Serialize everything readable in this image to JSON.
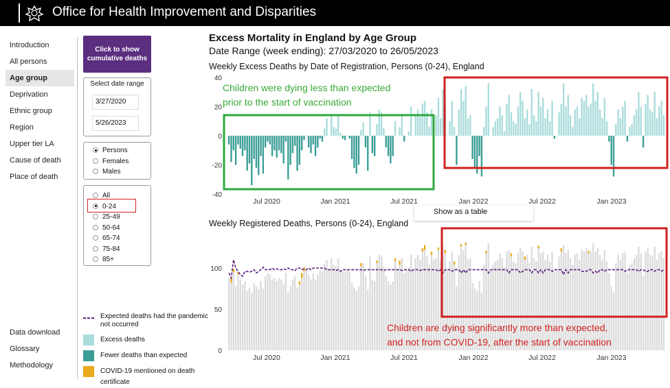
{
  "header": {
    "title": "Office for Health Improvement and Disparities"
  },
  "nav": {
    "items": [
      "Introduction",
      "All persons",
      "Age group",
      "Deprivation",
      "Ethnic group",
      "Region",
      "Upper tier LA",
      "Cause of death",
      "Place of death"
    ],
    "active_index": 2,
    "bottom_items": [
      "Data download",
      "Glossary",
      "Methodology"
    ]
  },
  "controls": {
    "cumulative_button": "Click to show cumulative deaths",
    "date_range_title": "Select date range",
    "date_start": "3/27/2020",
    "date_end": "5/26/2023",
    "sex_options": [
      "Persons",
      "Females",
      "Males"
    ],
    "sex_selected": 0,
    "age_options": [
      "All",
      "0-24",
      "25-49",
      "50-64",
      "65-74",
      "75-84",
      "85+"
    ],
    "age_selected": 1
  },
  "legend": {
    "expected_line": "Expected deaths had the pandemic not occurred",
    "excess": "Excess deaths",
    "fewer": "Fewer deaths than expected",
    "covid": "COVID-19 mentioned on death certificate"
  },
  "page": {
    "title": "Excess Mortality in England by Age Group",
    "subtitle": "Date Range (week ending): 27/03/2020 to 26/05/2023"
  },
  "tooltip": "Show as a table",
  "annotations": {
    "green": [
      "Children were dying less than expected",
      "prior to the start of vaccination"
    ],
    "red": [
      "Children are dying significantly more than expected,",
      "and not from COVID-19, after the start of vaccination"
    ]
  },
  "colors": {
    "excess": "#aadcdb",
    "fewer": "#3a9e96",
    "covid": "#e8a91c",
    "expected": "#5a1f7a",
    "registered": "#dcdcdc",
    "header_bg": "#000000",
    "button_bg": "#5b2e7f",
    "green_box": "#2ea83e",
    "red_box": "#d02020"
  },
  "chart_data": [
    {
      "type": "bar",
      "title": "Weekly Excess Deaths by Date of Registration, Persons (0-24), England",
      "x_tick_labels": [
        "Jul 2020",
        "Jan 2021",
        "Jul 2021",
        "Jan 2022",
        "Jul 2022",
        "Jan 2023"
      ],
      "ylim": [
        -40,
        40
      ],
      "y_ticks": [
        40,
        20,
        0,
        -20,
        -40
      ],
      "values": [
        -6,
        -18,
        -10,
        -20,
        -6,
        -9,
        -14,
        -10,
        -24,
        -19,
        -34,
        -16,
        -22,
        -27,
        -14,
        -26,
        -8,
        -4,
        -6,
        -14,
        -10,
        -15,
        -10,
        -12,
        -19,
        -4,
        -30,
        -20,
        -12,
        -7,
        -24,
        -20,
        -10,
        -3,
        0,
        -8,
        -12,
        -6,
        -14,
        -8,
        -2,
        -4,
        5,
        12,
        0,
        14,
        6,
        5,
        14,
        2,
        -2,
        -3,
        0,
        -2,
        -16,
        -22,
        -26,
        -20,
        4,
        9,
        -8,
        -24,
        16,
        -12,
        -14,
        8,
        18,
        16,
        5,
        -8,
        -14,
        -19,
        -14,
        10,
        0,
        6,
        15,
        -4,
        0,
        3,
        20,
        0,
        14,
        18,
        13,
        22,
        24,
        16,
        6,
        18,
        12,
        14,
        26,
        12,
        32,
        20,
        0,
        10,
        24,
        6,
        -20,
        18,
        32,
        24,
        34,
        12,
        14,
        -16,
        -22,
        -26,
        -14,
        -28,
        6,
        20,
        36,
        0,
        6,
        10,
        12,
        20,
        14,
        3,
        22,
        28,
        16,
        10,
        8,
        20,
        30,
        24,
        12,
        18,
        8,
        32,
        14,
        10,
        30,
        20,
        26,
        12,
        18,
        10,
        24,
        -2,
        0,
        16,
        22,
        36,
        20,
        28,
        14,
        6,
        18,
        20,
        12,
        26,
        24,
        28,
        20,
        22,
        36,
        24,
        30,
        18,
        12,
        26,
        10,
        -4,
        -20,
        -28,
        8,
        18,
        12,
        20,
        24,
        -4,
        6,
        8,
        14,
        18,
        30,
        20,
        -8,
        22,
        28,
        18,
        16,
        30,
        12,
        20,
        24,
        14
      ]
    },
    {
      "type": "bar",
      "title": "Weekly Registered Deaths, Persons (0-24), England",
      "x_tick_labels": [
        "Jul 2020",
        "Jan 2021",
        "Jul 2021",
        "Jan 2022",
        "Jul 2022",
        "Jan 2023"
      ],
      "ylim": [
        0,
        125
      ],
      "y_ticks": [
        100,
        50,
        0
      ],
      "series": [
        {
          "name": "Registered deaths",
          "values": [
            88,
            82,
            95,
            78,
            92,
            86,
            80,
            84,
            72,
            76,
            70,
            82,
            78,
            74,
            84,
            75,
            90,
            94,
            92,
            86,
            88,
            84,
            88,
            86,
            80,
            94,
            70,
            78,
            86,
            90,
            76,
            80,
            88,
            96,
            98,
            92,
            86,
            94,
            86,
            92,
            98,
            96,
            105,
            110,
            98,
            112,
            104,
            102,
            112,
            98,
            96,
            95,
            98,
            96,
            82,
            76,
            72,
            78,
            102,
            106,
            90,
            74,
            114,
            86,
            84,
            106,
            116,
            114,
            102,
            90,
            84,
            80,
            84,
            108,
            98,
            104,
            112,
            94,
            98,
            101,
            116,
            98,
            112,
            116,
            110,
            120,
            122,
            114,
            104,
            116,
            110,
            112,
            122,
            110,
            126,
            118,
            98,
            108,
            120,
            104,
            78,
            116,
            126,
            122,
            128,
            110,
            112,
            82,
            76,
            72,
            84,
            70,
            104,
            118,
            130,
            98,
            104,
            108,
            110,
            118,
            112,
            101,
            120,
            122,
            114,
            108,
            106,
            118,
            124,
            120,
            110,
            116,
            106,
            126,
            112,
            108,
            124,
            118,
            120,
            110,
            116,
            108,
            120,
            96,
            98,
            114,
            120,
            128,
            118,
            122,
            112,
            104,
            116,
            118,
            110,
            122,
            120,
            124,
            118,
            120,
            130,
            120,
            124,
            116,
            110,
            122,
            108,
            94,
            78,
            70,
            106,
            116,
            110,
            118,
            120,
            94,
            104,
            106,
            112,
            116,
            126,
            118,
            90,
            120,
            124,
            116,
            114,
            126,
            110,
            118,
            120,
            112
          ]
        },
        {
          "name": "Expected deaths had the pandemic not occurred",
          "values": [
            94,
            88,
            110,
            100,
            96,
            92,
            90,
            96,
            96,
            95,
            96,
            98,
            94,
            96,
            98,
            101,
            98,
            98,
            98,
            100,
            98,
            99,
            98,
            98,
            99,
            98,
            100,
            98,
            98,
            97,
            100,
            100,
            98,
            99,
            98,
            100,
            98,
            100,
            100,
            100,
            100,
            100,
            100,
            98,
            98,
            98,
            98,
            97,
            98,
            96,
            98,
            98,
            98,
            98,
            98,
            98,
            98,
            98,
            98,
            97,
            98,
            98,
            98,
            98,
            98,
            98,
            98,
            98,
            97,
            98,
            98,
            98,
            98,
            98,
            98,
            98,
            97,
            98,
            98,
            98,
            96,
            98,
            98,
            98,
            97,
            98,
            98,
            98,
            98,
            98,
            98,
            98,
            96,
            98,
            94,
            98,
            98,
            98,
            96,
            98,
            98,
            98,
            94,
            98,
            94,
            98,
            98,
            98,
            98,
            98,
            98,
            98,
            98,
            98,
            94,
            98,
            98,
            98,
            98,
            98,
            98,
            98,
            98,
            94,
            98,
            98,
            98,
            98,
            94,
            96,
            98,
            98,
            98,
            94,
            98,
            98,
            94,
            98,
            94,
            98,
            98,
            98,
            96,
            98,
            98,
            98,
            98,
            92,
            98,
            94,
            98,
            98,
            98,
            98,
            98,
            96,
            96,
            96,
            98,
            98,
            94,
            96,
            94,
            98,
            98,
            96,
            98,
            98,
            98,
            98,
            98,
            98,
            98,
            98,
            96,
            98,
            98,
            98,
            98,
            98,
            96,
            98,
            98,
            96,
            96,
            98,
            98,
            96,
            98,
            98,
            96,
            98
          ]
        },
        {
          "name": "COVID-19 mentioned on death certificate",
          "values": [
            0,
            6,
            4,
            0,
            3,
            0,
            0,
            0,
            0,
            0,
            0,
            0,
            0,
            0,
            0,
            0,
            0,
            0,
            0,
            0,
            0,
            0,
            0,
            0,
            0,
            0,
            0,
            0,
            0,
            0,
            0,
            4,
            6,
            5,
            0,
            0,
            0,
            0,
            0,
            0,
            0,
            0,
            0,
            0,
            0,
            0,
            0,
            0,
            0,
            0,
            0,
            0,
            0,
            0,
            0,
            0,
            0,
            0,
            4,
            0,
            0,
            0,
            0,
            0,
            0,
            3,
            0,
            0,
            0,
            0,
            0,
            0,
            0,
            4,
            0,
            5,
            0,
            0,
            0,
            0,
            0,
            0,
            0,
            0,
            0,
            4,
            6,
            0,
            0,
            4,
            0,
            0,
            3,
            0,
            0,
            4,
            0,
            0,
            0,
            4,
            0,
            0,
            3,
            0,
            3,
            0,
            0,
            0,
            0,
            0,
            0,
            0,
            0,
            3,
            0,
            0,
            0,
            0,
            0,
            0,
            0,
            0,
            0,
            0,
            4,
            0,
            0,
            0,
            0,
            0,
            4,
            0,
            0,
            0,
            0,
            0,
            3,
            0,
            0,
            0,
            0,
            0,
            0,
            0,
            0,
            0,
            4,
            0,
            0,
            0,
            0,
            0,
            0,
            0,
            0,
            0,
            0,
            0,
            3,
            0,
            0,
            0,
            0,
            0,
            0,
            0,
            0,
            0,
            0,
            0,
            0,
            0,
            0,
            0,
            0,
            0,
            0,
            0,
            0,
            0,
            0,
            0,
            0,
            0,
            0,
            0,
            0,
            0,
            0,
            0,
            0
          ]
        }
      ]
    }
  ]
}
